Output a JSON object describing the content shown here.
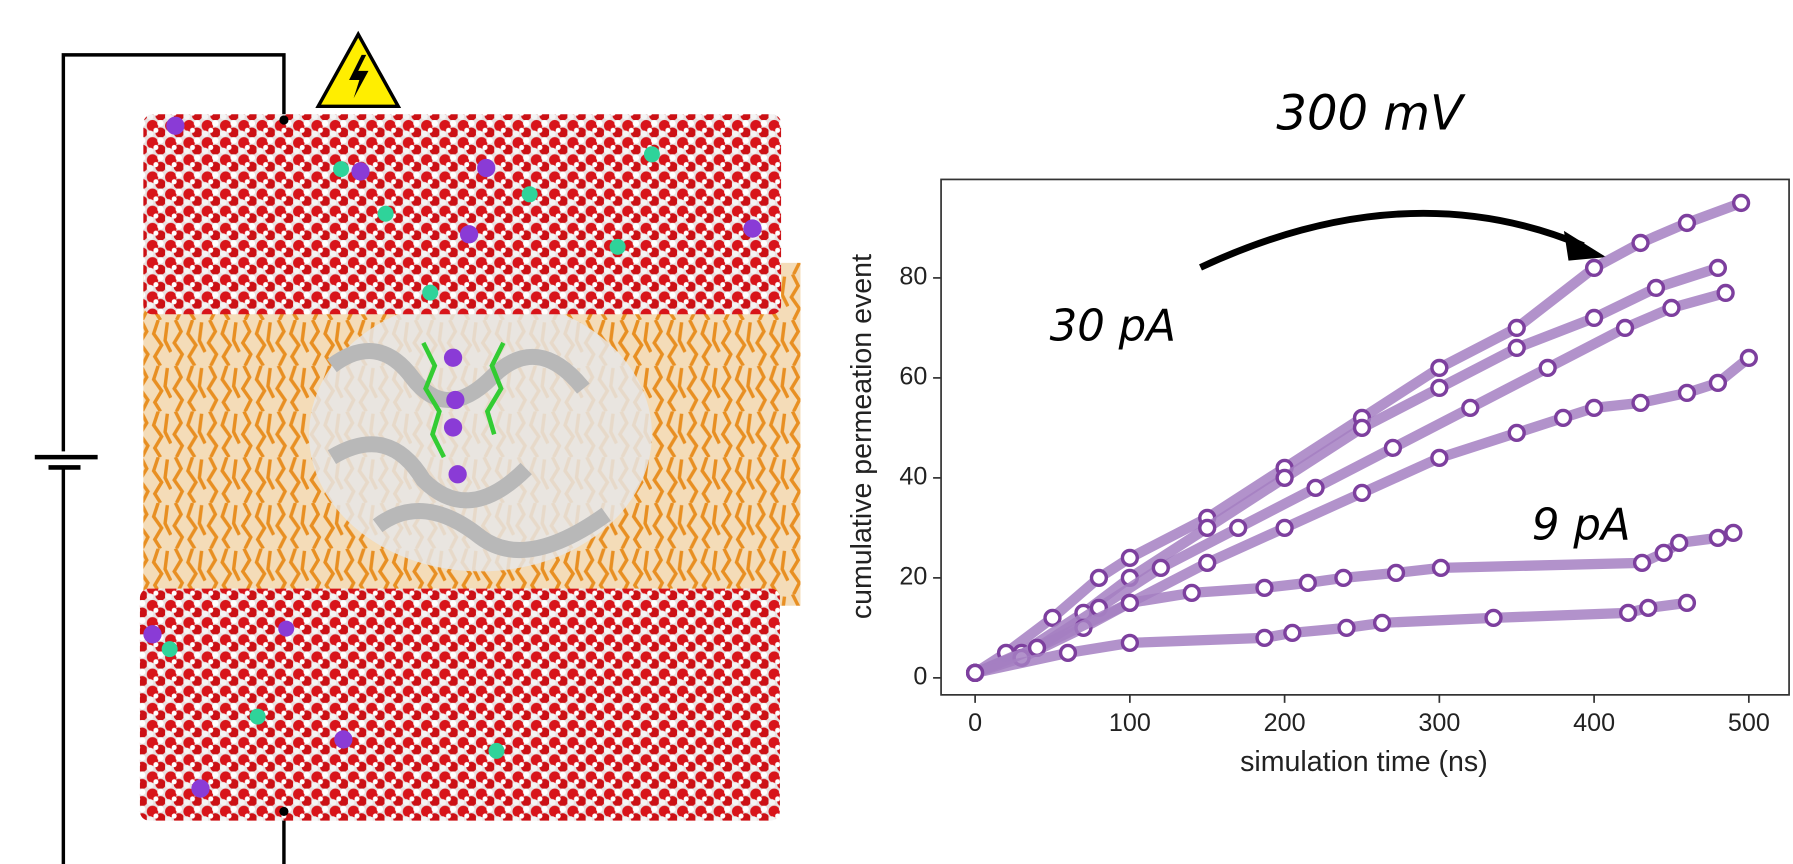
{
  "chart_data": {
    "type": "line",
    "title": "300 mV",
    "x_label": "simulation time (ns)",
    "y_label": "cumulative permeation event",
    "annotations": [
      "30 pA",
      "9 pA"
    ],
    "xlim": [
      -22,
      526
    ],
    "ylim": [
      -3.4,
      99.7
    ],
    "xticks": [
      0,
      100,
      200,
      300,
      400,
      500
    ],
    "yticks": [
      0,
      20,
      40,
      60,
      80
    ],
    "line_color": "#a57fc2",
    "marker_color": "#7d3f9e",
    "series": [
      {
        "x": [
          0,
          20,
          50,
          80,
          100,
          150,
          200,
          250,
          300,
          350,
          400,
          430,
          460,
          495
        ],
        "values": [
          1,
          5,
          12,
          20,
          24,
          32,
          42,
          52,
          62,
          70,
          82,
          87,
          91,
          95
        ]
      },
      {
        "x": [
          0,
          30,
          70,
          100,
          150,
          200,
          250,
          300,
          350,
          400,
          440,
          480
        ],
        "values": [
          1,
          5,
          13,
          20,
          30,
          40,
          50,
          58,
          66,
          72,
          78,
          82
        ]
      },
      {
        "x": [
          0,
          40,
          80,
          120,
          170,
          220,
          270,
          320,
          370,
          420,
          450,
          485
        ],
        "values": [
          1,
          6,
          14,
          22,
          30,
          38,
          46,
          54,
          62,
          70,
          74,
          77
        ]
      },
      {
        "x": [
          0,
          30,
          70,
          100,
          150,
          200,
          250,
          300,
          350,
          380,
          400,
          430,
          460,
          480,
          500
        ],
        "values": [
          1,
          4,
          10,
          15,
          23,
          30,
          37,
          44,
          49,
          52,
          54,
          55,
          57,
          59,
          64
        ]
      },
      {
        "x": [
          0,
          40,
          100,
          140,
          187,
          215,
          238,
          272,
          301,
          431,
          445,
          455,
          480,
          490
        ],
        "values": [
          1,
          6,
          15,
          17,
          18,
          19,
          20,
          21,
          22,
          23,
          25,
          27,
          28,
          29
        ]
      },
      {
        "x": [
          0,
          60,
          100,
          187,
          205,
          240,
          263,
          335,
          422,
          435,
          460
        ],
        "values": [
          1,
          5,
          7,
          8,
          9,
          10,
          11,
          12,
          13,
          14,
          15
        ]
      }
    ]
  }
}
